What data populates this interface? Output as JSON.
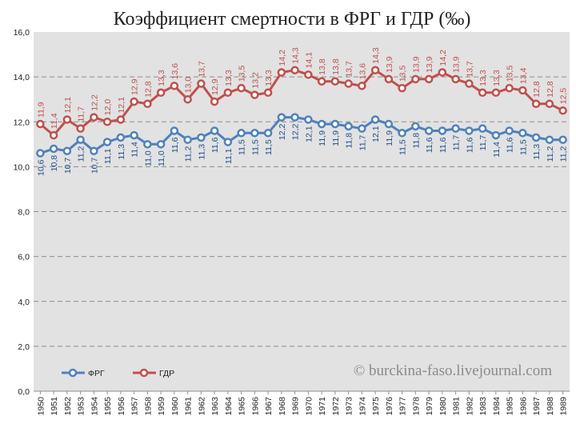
{
  "chart_data": {
    "type": "line",
    "title": "Коэффициент смертности в ФРГ и ГДР (‰)",
    "xlabel": "",
    "ylabel": "",
    "ylim": [
      0,
      16
    ],
    "yticks": [
      "0,0",
      "2,0",
      "4,0",
      "6,0",
      "8,0",
      "10,0",
      "12,0",
      "14,0",
      "16,0"
    ],
    "grid": true,
    "legend_position": "bottom-left",
    "categories": [
      "1950",
      "1951",
      "1952",
      "1953",
      "1954",
      "1955",
      "1956",
      "1957",
      "1958",
      "1959",
      "1960",
      "1961",
      "1962",
      "1963",
      "1964",
      "1965",
      "1966",
      "1967",
      "1968",
      "1969",
      "1970",
      "1971",
      "1972",
      "1973",
      "1974",
      "1975",
      "1976",
      "1977",
      "1978",
      "1979",
      "1980",
      "1981",
      "1982",
      "1983",
      "1984",
      "1985",
      "1986",
      "1987",
      "1988",
      "1989"
    ],
    "series": [
      {
        "name": "ФРГ",
        "color": "#4f81bd",
        "label_color": "#1f4e8c",
        "values": [
          10.6,
          10.8,
          10.7,
          11.2,
          10.7,
          11.1,
          11.3,
          11.4,
          11.0,
          11.0,
          11.6,
          11.2,
          11.3,
          11.6,
          11.1,
          11.5,
          11.5,
          11.5,
          12.2,
          12.2,
          12.1,
          11.9,
          11.9,
          11.8,
          11.7,
          12.1,
          11.9,
          11.5,
          11.8,
          11.6,
          11.6,
          11.7,
          11.6,
          11.7,
          11.4,
          11.6,
          11.5,
          11.3,
          11.2,
          11.2
        ],
        "labels": [
          "10,6",
          "10,8",
          "10,7",
          "11,2",
          "10,7",
          "11,1",
          "11,3",
          "11,4",
          "11,0",
          "11,0",
          "11,6",
          "11,2",
          "11,3",
          "11,6",
          "11,1",
          "11,5",
          "11,5",
          "11,5",
          "12,2",
          "12,2",
          "12,1",
          "11,9",
          "11,9",
          "11,8",
          "11,7",
          "12,1",
          "11,9",
          "11,5",
          "11,8",
          "11,6",
          "11,6",
          "11,7",
          "11,6",
          "11,7",
          "11,4",
          "11,6",
          "11,5",
          "11,3",
          "11,2",
          "11,2"
        ]
      },
      {
        "name": "ГДР",
        "color": "#c0504d",
        "label_color": "#c0504d",
        "values": [
          11.9,
          11.4,
          12.1,
          11.7,
          12.2,
          12.0,
          12.1,
          12.9,
          12.8,
          13.3,
          13.6,
          13.0,
          13.7,
          12.9,
          13.3,
          13.5,
          13.2,
          13.3,
          14.2,
          14.3,
          14.1,
          13.8,
          13.8,
          13.7,
          13.6,
          14.3,
          13.9,
          13.5,
          13.9,
          13.9,
          14.2,
          13.9,
          13.7,
          13.3,
          13.3,
          13.5,
          13.4,
          12.8,
          12.8,
          12.5
        ],
        "labels": [
          "11,9",
          "11,4",
          "12,1",
          "11,7",
          "12,2",
          "12,0",
          "12,1",
          "12,9",
          "12,8",
          "13,3",
          "13,6",
          "13,0",
          "13,7",
          "12,9",
          "13,3",
          "13,5",
          "13,2",
          "13,3",
          "14,2",
          "14,3",
          "14,1",
          "13,8",
          "13,8",
          "13,7",
          "13,6",
          "14,3",
          "13,9",
          "13,5",
          "13,9",
          "13,9",
          "14,2",
          "13,9",
          "13,7",
          "13,3",
          "13,3",
          "13,5",
          "13,4",
          "12,8",
          "12,8",
          "12,5"
        ]
      }
    ],
    "watermark": "© burckina-faso.livejournal.com"
  }
}
